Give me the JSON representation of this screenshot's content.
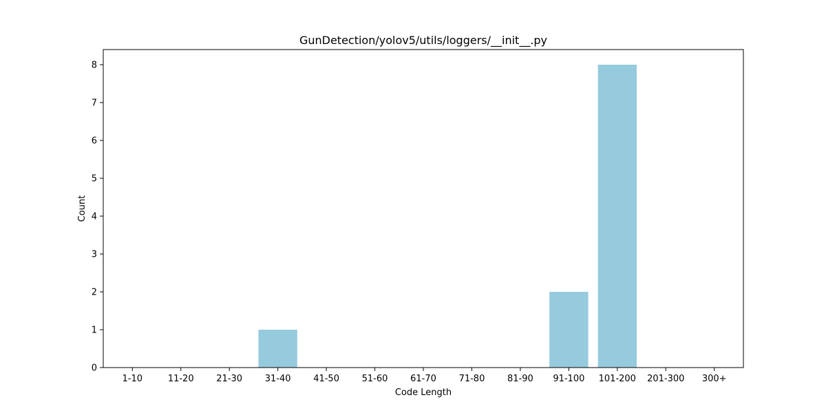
{
  "chart_data": {
    "type": "bar",
    "title": "GunDetection/yolov5/utils/loggers/__init__.py",
    "xlabel": "Code Length",
    "ylabel": "Count",
    "categories": [
      "1-10",
      "11-20",
      "21-30",
      "31-40",
      "41-50",
      "51-60",
      "61-70",
      "71-80",
      "81-90",
      "91-100",
      "101-200",
      "201-300",
      "300+"
    ],
    "values": [
      0,
      0,
      0,
      1,
      0,
      0,
      0,
      0,
      0,
      2,
      8,
      0,
      0
    ],
    "ylim": [
      0,
      8.4
    ],
    "yticks": [
      0,
      1,
      2,
      3,
      4,
      5,
      6,
      7,
      8
    ],
    "bar_color": "#96cadd",
    "grid": false,
    "legend": "none"
  }
}
